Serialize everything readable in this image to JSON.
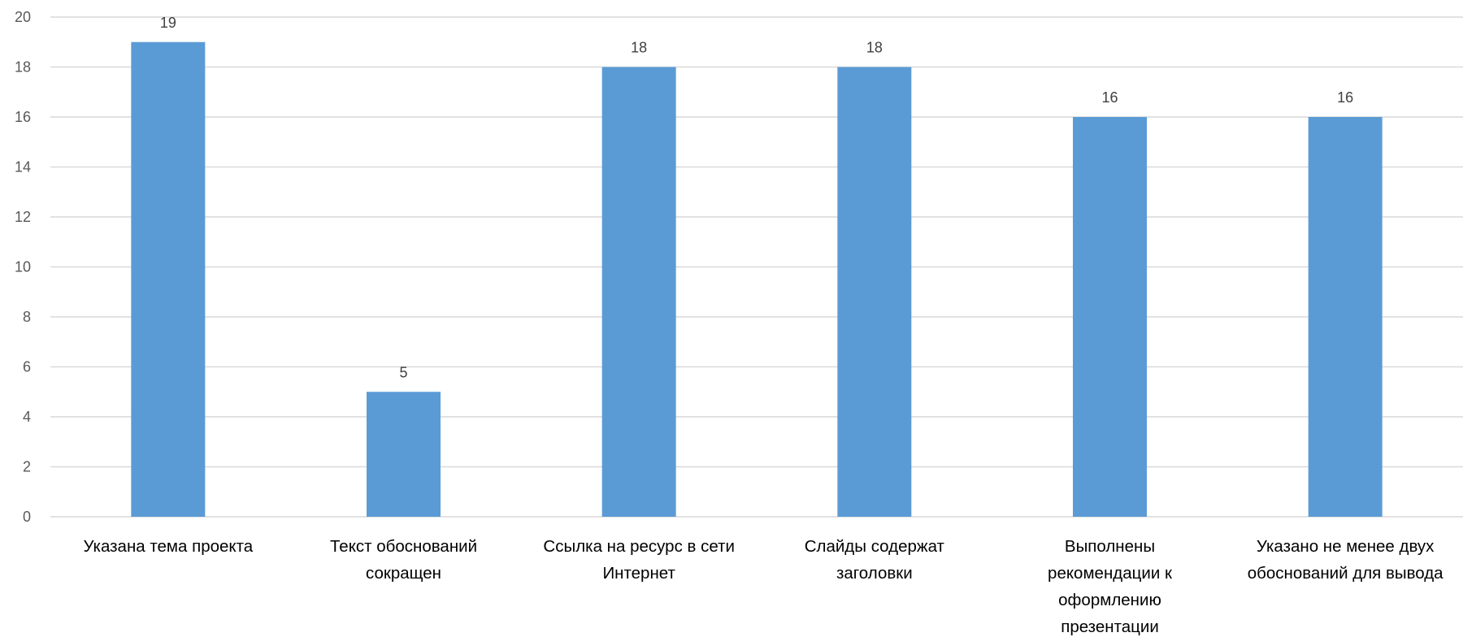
{
  "chart_data": {
    "type": "bar",
    "title": "",
    "xlabel": "",
    "ylabel": "",
    "ylim": [
      0,
      20
    ],
    "yticks": [
      0,
      2,
      4,
      6,
      8,
      10,
      12,
      14,
      16,
      18,
      20
    ],
    "grid": true,
    "legend": "none",
    "bar_color": "#5b9bd5",
    "categories": [
      [
        "Указана тема проекта"
      ],
      [
        "Текст обоснований",
        "сокращен"
      ],
      [
        "Ссылка на ресурс в сети",
        "Интернет"
      ],
      [
        "Слайды содержат",
        "заголовки"
      ],
      [
        "Выполнены",
        "рекомендации к",
        "оформлению",
        "презентации"
      ],
      [
        "Указано не менее двух",
        "обоснований для вывода"
      ]
    ],
    "values": [
      19,
      5,
      18,
      18,
      16,
      16
    ],
    "data_labels": [
      "19",
      "5",
      "18",
      "18",
      "16",
      "16"
    ]
  }
}
